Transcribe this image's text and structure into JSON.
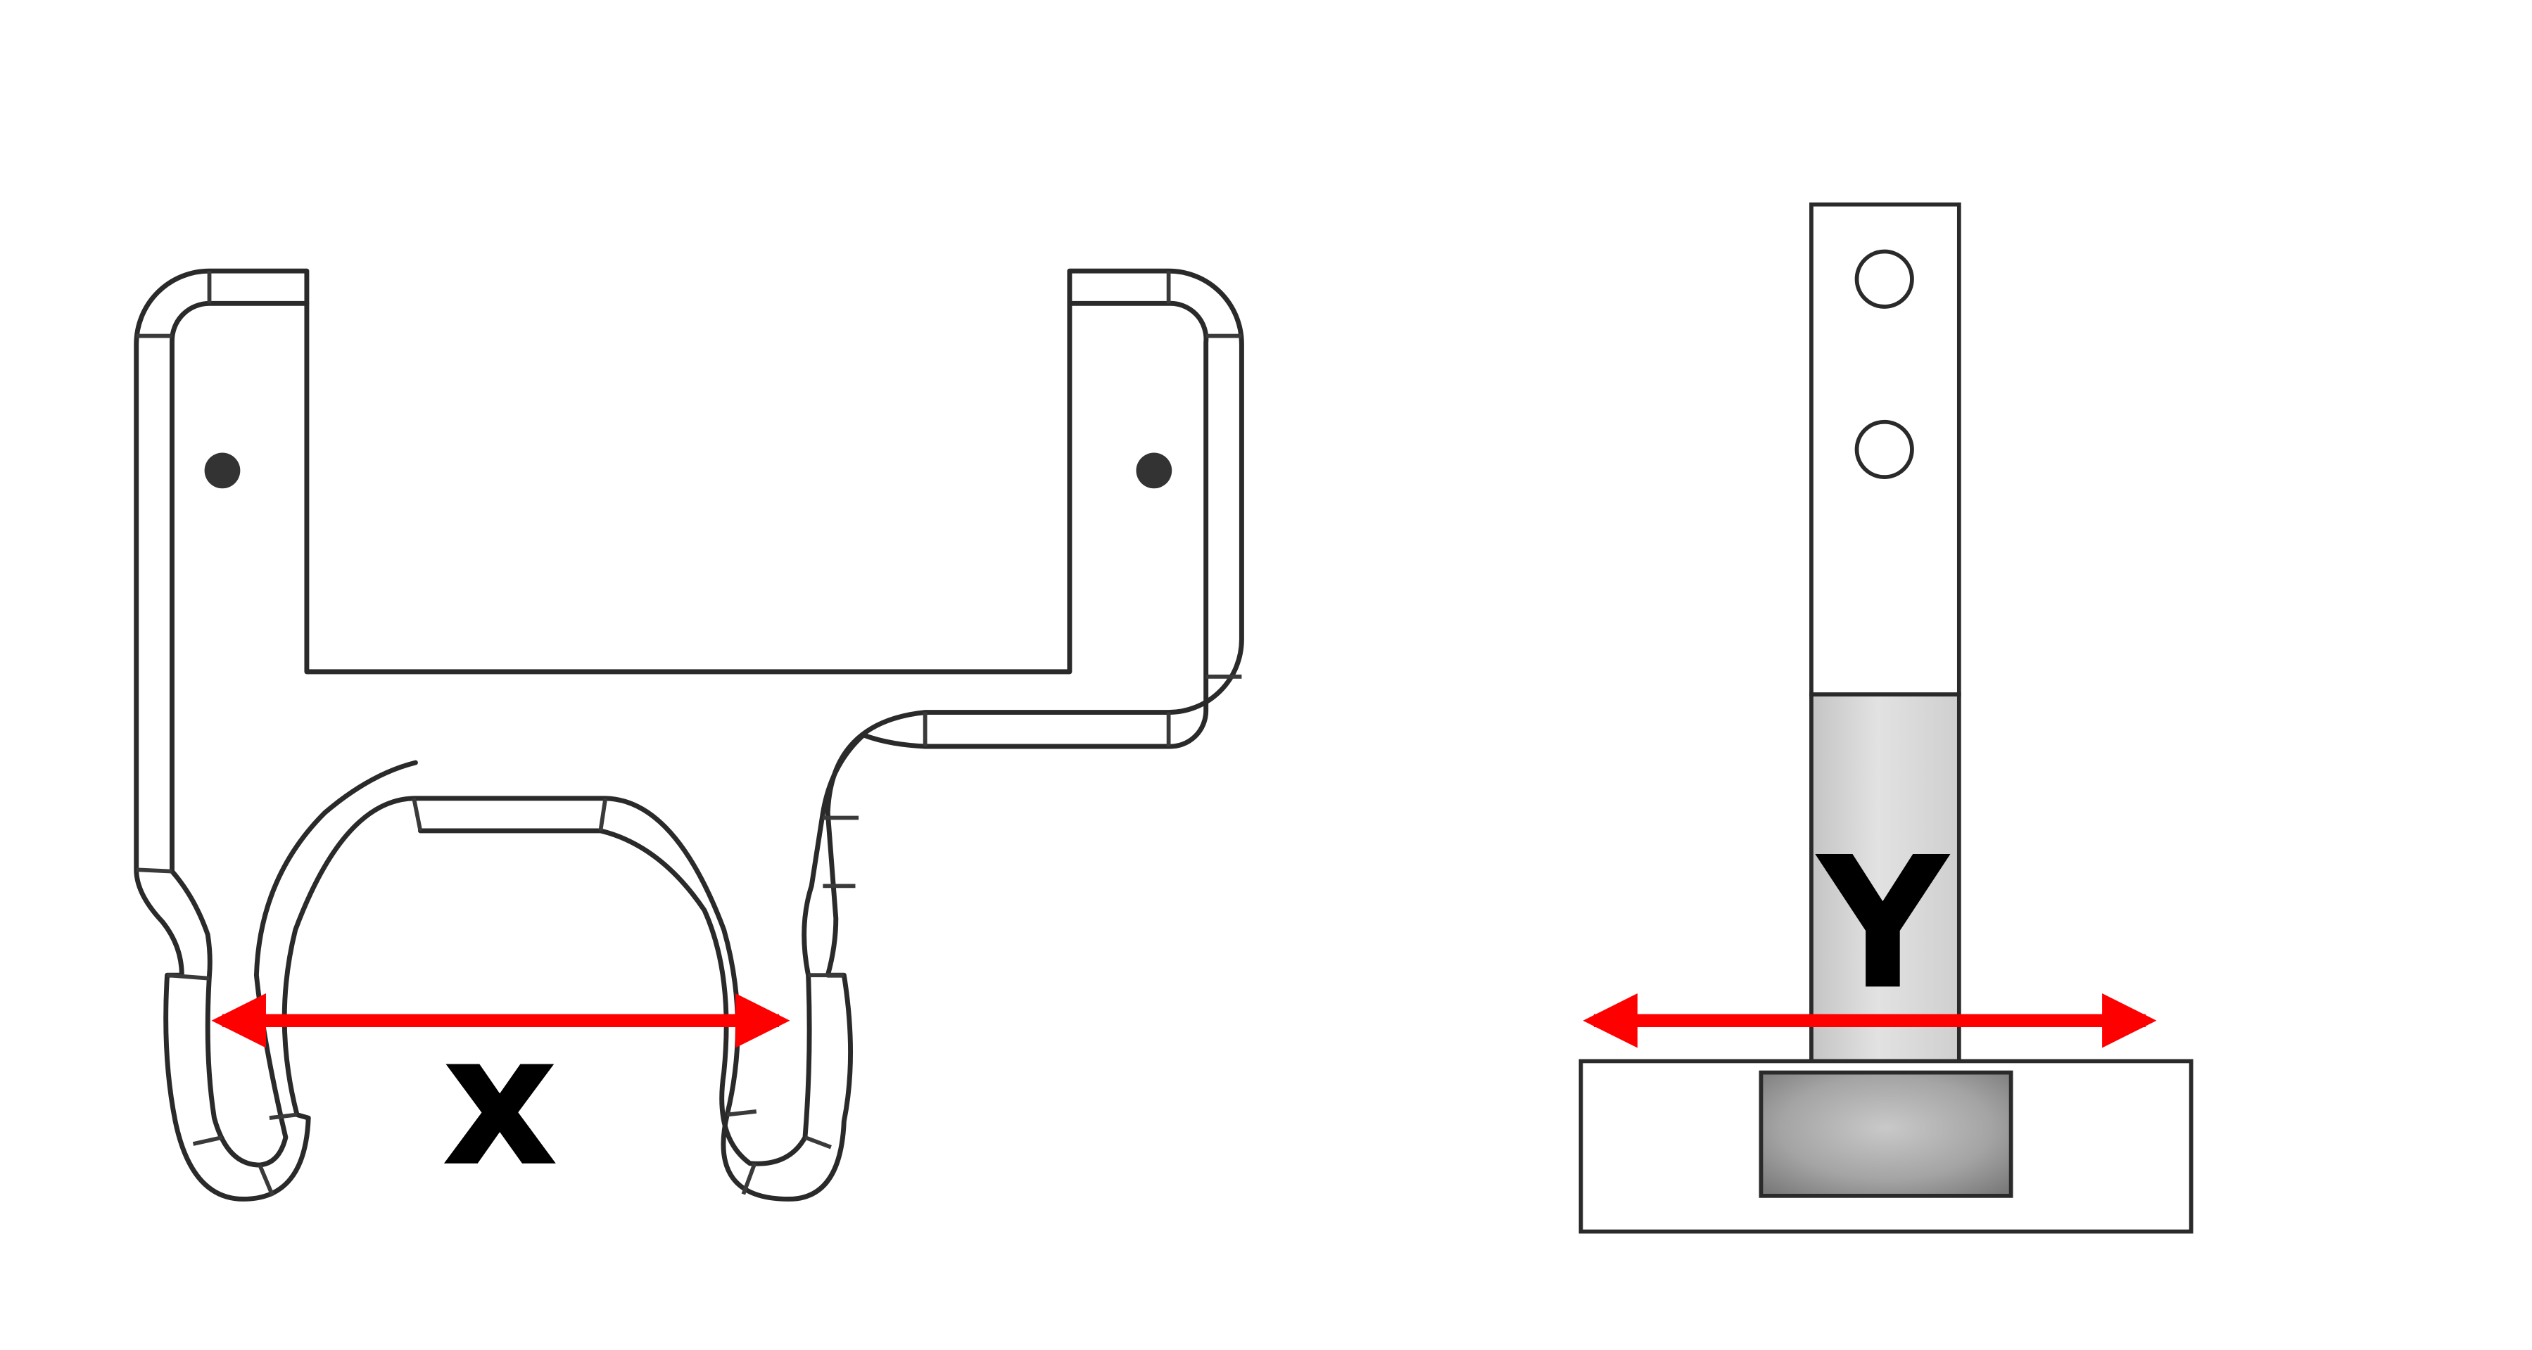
{
  "labels": {
    "x": "x",
    "y": "Y"
  },
  "colors": {
    "arrow": "#ff0000",
    "outline": "#2a2a2a",
    "hole_fill": "#333333",
    "background": "#ffffff"
  },
  "parts": {
    "front_view": "bracket-front-view",
    "side_view": "bracket-side-view"
  }
}
